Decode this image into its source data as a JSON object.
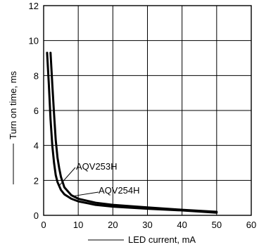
{
  "chart_data": {
    "type": "line",
    "xlabel": "LED current, mA",
    "ylabel": "Turn on time, ms",
    "xlim": [
      0,
      60
    ],
    "ylim": [
      0,
      12
    ],
    "x_ticks": [
      "0",
      "10",
      "20",
      "30",
      "40",
      "50",
      "60"
    ],
    "y_ticks": [
      "0",
      "2",
      "4",
      "6",
      "8",
      "10",
      "12"
    ],
    "grid": true,
    "series": [
      {
        "name": "AQV253H",
        "x": [
          1,
          1.5,
          2,
          2.5,
          3,
          3.5,
          4,
          5,
          6,
          8,
          10,
          15,
          20,
          30,
          40,
          50
        ],
        "y": [
          9.3,
          7.5,
          5.5,
          4.0,
          3.0,
          2.3,
          1.9,
          1.45,
          1.2,
          0.95,
          0.8,
          0.6,
          0.5,
          0.38,
          0.28,
          0.15
        ]
      },
      {
        "name": "AQV254H",
        "x": [
          2,
          2.5,
          3,
          3.5,
          4,
          4.5,
          5,
          6,
          8,
          10,
          15,
          20,
          30,
          40,
          50
        ],
        "y": [
          9.3,
          7.5,
          5.8,
          4.3,
          3.3,
          2.7,
          2.2,
          1.6,
          1.15,
          0.95,
          0.72,
          0.6,
          0.45,
          0.32,
          0.2
        ]
      }
    ]
  }
}
